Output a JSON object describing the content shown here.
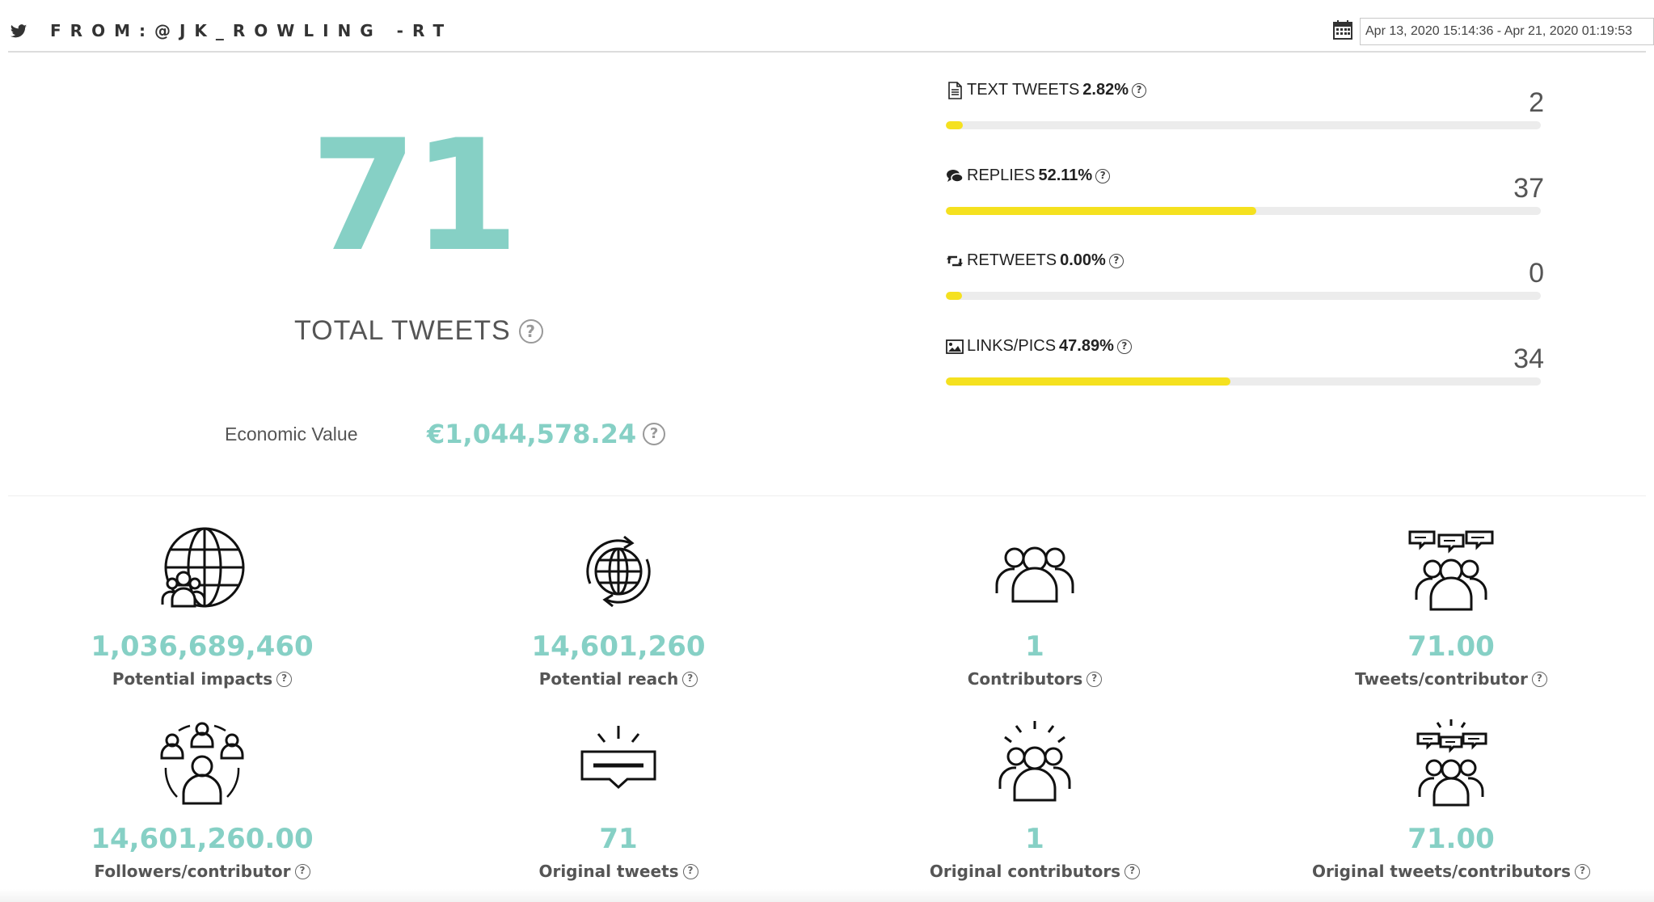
{
  "header": {
    "title": "FROM:@JK_ROWLING -RT",
    "date_range": "Apr 13, 2020 15:14:36 - Apr 21, 2020 01:19:53",
    "help": "?"
  },
  "summary": {
    "total_tweets": "71",
    "total_label": "TOTAL TWEETS",
    "economic_value_label": "Economic Value",
    "economic_value": "€1,044,578.24"
  },
  "breakdown": [
    {
      "label": "TEXT TWEETS",
      "percent": "2.82%",
      "count": "2",
      "fraction": 0.0282,
      "icon": "document-icon"
    },
    {
      "label": "REPLIES",
      "percent": "52.11%",
      "count": "37",
      "fraction": 0.5211,
      "icon": "speech-bubbles-icon"
    },
    {
      "label": "RETWEETS",
      "percent": "0.00%",
      "count": "0",
      "fraction": 0.0,
      "icon": "retweet-icon"
    },
    {
      "label": "LINKS/PICS",
      "percent": "47.89%",
      "count": "34",
      "fraction": 0.4789,
      "icon": "image-icon"
    }
  ],
  "stats": [
    {
      "value": "1,036,689,460",
      "caption": "Potential impacts",
      "icon": "globe-people-icon"
    },
    {
      "value": "14,601,260",
      "caption": "Potential reach",
      "icon": "globe-cycle-icon"
    },
    {
      "value": "1",
      "caption": "Contributors",
      "icon": "people-group-icon"
    },
    {
      "value": "71.00",
      "caption": "Tweets/contributor",
      "icon": "people-chat-icon"
    },
    {
      "value": "14,601,260.00",
      "caption": "Followers/contributor",
      "icon": "people-network-icon"
    },
    {
      "value": "71",
      "caption": "Original tweets",
      "icon": "highlight-message-icon"
    },
    {
      "value": "1",
      "caption": "Original contributors",
      "icon": "people-highlight-icon"
    },
    {
      "value": "71.00",
      "caption": "Original tweets/contributors",
      "icon": "people-chat-highlight-icon"
    }
  ],
  "colors": {
    "accent": "#86d0c5",
    "bar_fill": "#f5e11f",
    "bar_track": "#ececec"
  }
}
